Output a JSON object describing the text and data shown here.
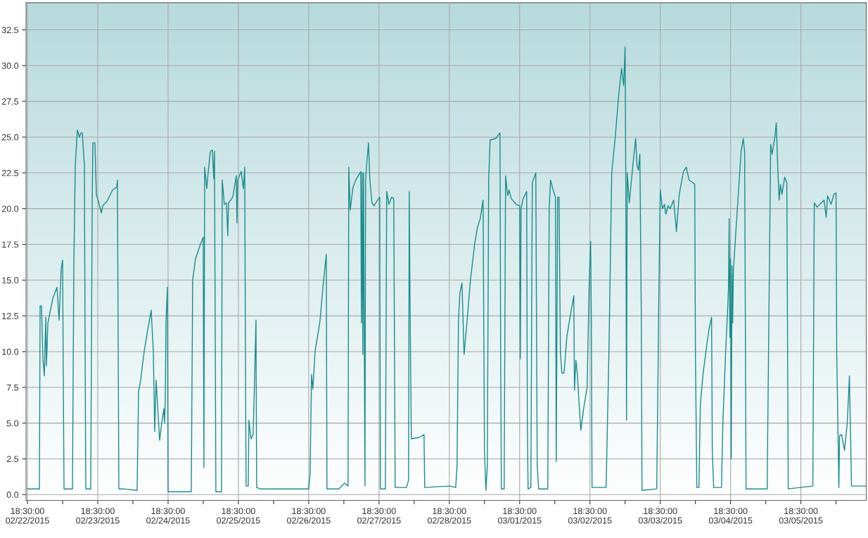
{
  "chart_data": {
    "type": "line",
    "grid": true,
    "marker": "none",
    "line_style": "solid",
    "xlim": [
      "2015-02-22T18:01",
      "2015-03-06T16:49"
    ],
    "ylim": [
      -0.4,
      34.4
    ],
    "yticks": [
      {
        "value": 0,
        "label": "0.0"
      },
      {
        "value": 2.5,
        "label": "2.5"
      },
      {
        "value": 5,
        "label": "5.0"
      },
      {
        "value": 7.5,
        "label": "7.5"
      },
      {
        "value": 10,
        "label": "10.0"
      },
      {
        "value": 12.5,
        "label": "12.5"
      },
      {
        "value": 15,
        "label": "15.0"
      },
      {
        "value": 17.5,
        "label": "17.5"
      },
      {
        "value": 20,
        "label": "20.0"
      },
      {
        "value": 22.5,
        "label": "22.5"
      },
      {
        "value": 25,
        "label": "25.0"
      },
      {
        "value": 27.5,
        "label": "27.5"
      },
      {
        "value": 30,
        "label": "30.0"
      },
      {
        "value": 32.5,
        "label": "32.5"
      }
    ],
    "xticks": [
      {
        "value": "2015-02-22T18:30",
        "label": "18:30:00\n02/22/2015"
      },
      {
        "value": "2015-02-23T06:30",
        "label": null
      },
      {
        "value": "2015-02-23T18:30",
        "label": "18:30:00\n02/23/2015"
      },
      {
        "value": "2015-02-24T06:30",
        "label": null
      },
      {
        "value": "2015-02-24T18:30",
        "label": "18:30:00\n02/24/2015"
      },
      {
        "value": "2015-02-25T06:30",
        "label": null
      },
      {
        "value": "2015-02-25T18:30",
        "label": "18:30:00\n02/25/2015"
      },
      {
        "value": "2015-02-26T06:30",
        "label": null
      },
      {
        "value": "2015-02-26T18:30",
        "label": "18:30:00\n02/26/2015"
      },
      {
        "value": "2015-02-27T06:30",
        "label": null
      },
      {
        "value": "2015-02-27T18:30",
        "label": "18:30:00\n02/27/2015"
      },
      {
        "value": "2015-02-28T06:30",
        "label": null
      },
      {
        "value": "2015-02-28T18:30",
        "label": "18:30:00\n02/28/2015"
      },
      {
        "value": "2015-03-01T06:30",
        "label": null
      },
      {
        "value": "2015-03-01T18:30",
        "label": "18:30:00\n03/01/2015"
      },
      {
        "value": "2015-03-02T06:30",
        "label": null
      },
      {
        "value": "2015-03-02T18:30",
        "label": "18:30:00\n03/02/2015"
      },
      {
        "value": "2015-03-03T06:30",
        "label": null
      },
      {
        "value": "2015-03-03T18:30",
        "label": "18:30:00\n03/03/2015"
      },
      {
        "value": "2015-03-04T06:30",
        "label": null
      },
      {
        "value": "2015-03-04T18:30",
        "label": "18:30:00\n03/04/2015"
      },
      {
        "value": "2015-03-05T06:30",
        "label": null
      },
      {
        "value": "2015-03-05T18:30",
        "label": "18:30:00\n03/05/2015"
      },
      {
        "value": "2015-03-06T06:30",
        "label": null
      }
    ],
    "series": [
      {
        "color": "#1b8c8c",
        "x": [
          "2015-02-22T18:30",
          "2015-02-22T22:35",
          "2015-02-22T22:49",
          "2015-02-22T23:18",
          "2015-02-22T23:47",
          "2015-02-23T00:16",
          "2015-02-23T00:44",
          "2015-02-23T00:59",
          "2015-02-23T01:28",
          "2015-02-23T03:08",
          "2015-02-23T04:35",
          "2015-02-23T05:18",
          "2015-02-23T06:01",
          "2015-02-23T06:30",
          "2015-02-23T06:44",
          "2015-02-23T06:59",
          "2015-02-23T09:52",
          "2015-02-23T10:20",
          "2015-02-23T10:49",
          "2015-02-23T11:32",
          "2015-02-23T12:16",
          "2015-02-23T12:44",
          "2015-02-23T13:13",
          "2015-02-23T13:56",
          "2015-02-23T14:11",
          "2015-02-23T14:25",
          "2015-02-23T16:06",
          "2015-02-23T16:35",
          "2015-02-23T16:49",
          "2015-02-23T17:32",
          "2015-02-23T18:01",
          "2015-02-23T18:44",
          "2015-02-23T19:42",
          "2015-02-23T20:11",
          "2015-02-23T21:37",
          "2015-02-23T23:32",
          "2015-02-24T00:59",
          "2015-02-24T01:13",
          "2015-02-24T01:28",
          "2015-02-24T01:42",
          "2015-02-24T03:08",
          "2015-02-24T07:56",
          "2015-02-24T08:25",
          "2015-02-24T09:08",
          "2015-02-24T10:20",
          "2015-02-24T11:32",
          "2015-02-24T12:44",
          "2015-02-24T13:28",
          "2015-02-24T13:56",
          "2015-02-24T14:25",
          "2015-02-24T15:37",
          "2015-02-24T16:20",
          "2015-02-24T17:04",
          "2015-02-24T17:18",
          "2015-02-24T17:32",
          "2015-02-24T17:47",
          "2015-02-24T18:16",
          "2015-02-24T18:30",
          "2015-02-25T02:25",
          "2015-02-25T02:54",
          "2015-02-25T03:52",
          "2015-02-25T05:32",
          "2015-02-25T06:30",
          "2015-02-25T06:44",
          "2015-02-25T06:59",
          "2015-02-25T07:42",
          "2015-02-25T08:11",
          "2015-02-25T08:54",
          "2015-02-25T09:37",
          "2015-02-25T10:06",
          "2015-02-25T10:20",
          "2015-02-25T10:49",
          "2015-02-25T12:44",
          "2015-02-25T12:59",
          "2015-02-25T13:42",
          "2015-02-25T14:25",
          "2015-02-25T14:54",
          "2015-02-25T15:08",
          "2015-02-25T16:35",
          "2015-02-25T17:47",
          "2015-02-25T18:01",
          "2015-02-25T18:16",
          "2015-02-25T19:28",
          "2015-02-25T20:11",
          "2015-02-25T20:40",
          "2015-02-25T20:54",
          "2015-02-25T21:08",
          "2015-02-25T21:52",
          "2015-02-25T22:06",
          "2015-02-25T22:49",
          "2015-02-25T23:32",
          "2015-02-26T00:01",
          "2015-02-26T00:30",
          "2015-02-26T00:44",
          "2015-02-26T01:56",
          "2015-02-26T18:30",
          "2015-02-26T18:59",
          "2015-02-26T19:28",
          "2015-02-26T19:56",
          "2015-02-26T20:40",
          "2015-02-26T22:20",
          "2015-02-26T23:32",
          "2015-02-27T00:30",
          "2015-02-27T00:44",
          "2015-02-27T04:49",
          "2015-02-27T06:44",
          "2015-02-27T07:56",
          "2015-02-27T08:11",
          "2015-02-27T08:40",
          "2015-02-27T09:37",
          "2015-02-27T10:35",
          "2015-02-27T12:16",
          "2015-02-27T12:30",
          "2015-02-27T12:44",
          "2015-02-27T12:59",
          "2015-02-27T13:13",
          "2015-02-27T13:42",
          "2015-02-27T13:56",
          "2015-02-27T14:11",
          "2015-02-27T14:54",
          "2015-02-27T15:23",
          "2015-02-27T16:06",
          "2015-02-27T16:49",
          "2015-02-27T18:01",
          "2015-02-27T18:44",
          "2015-02-27T18:59",
          "2015-02-27T20:40",
          "2015-02-27T21:08",
          "2015-02-27T21:52",
          "2015-02-27T22:49",
          "2015-02-27T23:32",
          "2015-02-28T00:01",
          "2015-02-28T03:52",
          "2015-02-28T04:35",
          "2015-02-28T04:49",
          "2015-02-28T05:04",
          "2015-02-28T05:32",
          "2015-02-28T08:11",
          "2015-02-28T09:52",
          "2015-02-28T10:06",
          "2015-02-28T18:44",
          "2015-02-28T20:40",
          "2015-02-28T21:08",
          "2015-02-28T21:37",
          "2015-02-28T22:06",
          "2015-02-28T22:49",
          "2015-02-28T23:32",
          "2015-03-01T00:30",
          "2015-03-01T01:42",
          "2015-03-01T03:08",
          "2015-03-01T04:06",
          "2015-03-01T05:04",
          "2015-03-01T06:01",
          "2015-03-01T06:30",
          "2015-03-01T06:59",
          "2015-03-01T07:28",
          "2015-03-01T07:56",
          "2015-03-01T08:25",
          "2015-03-01T10:20",
          "2015-03-01T11:47",
          "2015-03-01T12:01",
          "2015-03-01T12:16",
          "2015-03-01T13:13",
          "2015-03-01T13:42",
          "2015-03-01T14:25",
          "2015-03-01T14:54",
          "2015-03-01T15:37",
          "2015-03-01T17:18",
          "2015-03-01T18:30",
          "2015-03-01T18:44",
          "2015-03-01T18:59",
          "2015-03-01T19:42",
          "2015-03-01T20:54",
          "2015-03-01T21:08",
          "2015-03-01T21:23",
          "2015-03-01T22:20",
          "2015-03-01T22:49",
          "2015-03-02T00:01",
          "2015-03-02T00:30",
          "2015-03-02T00:59",
          "2015-03-02T04:06",
          "2015-03-02T04:35",
          "2015-03-02T05:04",
          "2015-03-02T05:47",
          "2015-03-02T06:44",
          "2015-03-02T06:59",
          "2015-03-02T07:28",
          "2015-03-02T07:56",
          "2015-03-02T08:25",
          "2015-03-02T08:54",
          "2015-03-02T09:37",
          "2015-03-02T09:52",
          "2015-03-02T10:35",
          "2015-03-02T11:47",
          "2015-03-02T12:59",
          "2015-03-02T13:13",
          "2015-03-02T13:42",
          "2015-03-02T14:11",
          "2015-03-02T14:54",
          "2015-03-02T15:23",
          "2015-03-02T16:20",
          "2015-03-02T17:32",
          "2015-03-02T18:16",
          "2015-03-02T18:44",
          "2015-03-02T18:59",
          "2015-03-02T19:13",
          "2015-03-03T00:01",
          "2015-03-03T00:59",
          "2015-03-03T01:56",
          "2015-03-03T03:08",
          "2015-03-03T04:20",
          "2015-03-03T05:18",
          "2015-03-03T06:01",
          "2015-03-03T06:30",
          "2015-03-03T06:44",
          "2015-03-03T06:59",
          "2015-03-03T07:13",
          "2015-03-03T07:56",
          "2015-03-03T08:40",
          "2015-03-03T09:23",
          "2015-03-03T10:06",
          "2015-03-03T10:35",
          "2015-03-03T11:04",
          "2015-03-03T11:32",
          "2015-03-03T12:01",
          "2015-03-03T12:16",
          "2015-03-03T17:18",
          "2015-03-03T18:01",
          "2015-03-03T18:30",
          "2015-03-03T19:13",
          "2015-03-03T19:56",
          "2015-03-03T20:25",
          "2015-03-03T21:08",
          "2015-03-03T21:52",
          "2015-03-03T23:04",
          "2015-03-04T00:01",
          "2015-03-04T00:59",
          "2015-03-04T02:25",
          "2015-03-04T03:23",
          "2015-03-04T04:20",
          "2015-03-04T05:04",
          "2015-03-04T06:16",
          "2015-03-04T06:30",
          "2015-03-04T06:59",
          "2015-03-04T07:42",
          "2015-03-04T08:11",
          "2015-03-04T09:08",
          "2015-03-04T10:06",
          "2015-03-04T11:04",
          "2015-03-04T12:01",
          "2015-03-04T12:16",
          "2015-03-04T12:44",
          "2015-03-04T15:23",
          "2015-03-04T15:52",
          "2015-03-04T16:49",
          "2015-03-04T17:32",
          "2015-03-04T17:47",
          "2015-03-04T18:01",
          "2015-03-04T18:16",
          "2015-03-04T18:30",
          "2015-03-04T18:44",
          "2015-03-04T18:59",
          "2015-03-04T19:13",
          "2015-03-04T19:28",
          "2015-03-04T20:11",
          "2015-03-04T21:08",
          "2015-03-04T22:06",
          "2015-03-04T22:49",
          "2015-03-04T23:18",
          "2015-03-04T23:47",
          "2015-03-05T06:59",
          "2015-03-05T07:28",
          "2015-03-05T08:11",
          "2015-03-05T08:40",
          "2015-03-05T09:37",
          "2015-03-05T10:06",
          "2015-03-05T10:35",
          "2015-03-05T11:04",
          "2015-03-05T11:32",
          "2015-03-05T12:01",
          "2015-03-05T12:59",
          "2015-03-05T13:42",
          "2015-03-05T14:11",
          "2015-03-05T22:35",
          "2015-03-05T23:04",
          "2015-03-06T00:01",
          "2015-03-06T00:59",
          "2015-03-06T02:25",
          "2015-03-06T03:08",
          "2015-03-06T03:37",
          "2015-03-06T04:49",
          "2015-03-06T05:47",
          "2015-03-06T06:30",
          "2015-03-06T06:44",
          "2015-03-06T07:28",
          "2015-03-06T07:42",
          "2015-03-06T08:25",
          "2015-03-06T09:23",
          "2015-03-06T10:20",
          "2015-03-06T11:04",
          "2015-03-06T11:47",
          "2015-03-06T16:49"
        ],
        "values": [
          0.4,
          0.4,
          13.2,
          13.2,
          9.5,
          8.3,
          12.4,
          9.0,
          12.0,
          13.7,
          14.5,
          12.2,
          15.8,
          16.4,
          8.0,
          0.4,
          0.4,
          16.0,
          23.0,
          25.5,
          25.0,
          25.3,
          25.3,
          23.0,
          10.0,
          0.4,
          0.4,
          20.0,
          24.6,
          24.6,
          21.0,
          20.5,
          19.7,
          20.2,
          20.5,
          21.3,
          21.5,
          22.0,
          10.5,
          0.4,
          0.4,
          0.3,
          7.2,
          8.0,
          10.0,
          11.5,
          12.9,
          10.0,
          4.4,
          8.0,
          3.8,
          5.0,
          6.0,
          5.0,
          6.5,
          12.0,
          14.5,
          0.2,
          0.2,
          15.0,
          16.5,
          17.5,
          18.0,
          1.9,
          22.9,
          21.4,
          22.5,
          24.0,
          24.1,
          22.1,
          24.0,
          0.2,
          0.2,
          22.0,
          20.3,
          20.4,
          18.1,
          20.4,
          20.8,
          22.3,
          19.0,
          22.0,
          22.6,
          21.4,
          22.9,
          10.0,
          0.6,
          0.6,
          5.2,
          3.9,
          4.2,
          8.0,
          12.2,
          0.5,
          0.4,
          0.4,
          1.5,
          8.4,
          7.4,
          10.0,
          12.1,
          14.9,
          16.8,
          0.4,
          0.4,
          0.8,
          0.6,
          22.9,
          19.9,
          21.5,
          22.0,
          22.6,
          12.0,
          22.5,
          9.8,
          22.5,
          0.6,
          22.0,
          22.8,
          24.6,
          22.0,
          20.4,
          20.2,
          20.6,
          20.8,
          0.4,
          0.4,
          21.2,
          20.3,
          20.8,
          20.7,
          0.5,
          0.5,
          1.0,
          21.2,
          13.9,
          3.9,
          4.0,
          4.2,
          0.5,
          0.6,
          0.5,
          2.0,
          12.1,
          14.1,
          14.8,
          9.8,
          12.0,
          15.0,
          17.5,
          18.7,
          19.3,
          20.6,
          3.0,
          0.3,
          2.0,
          22.0,
          24.8,
          24.9,
          25.3,
          10.0,
          0.4,
          0.4,
          22.3,
          20.9,
          21.3,
          20.7,
          20.3,
          20.2,
          9.5,
          20.0,
          20.7,
          21.2,
          5.0,
          0.4,
          0.5,
          21.8,
          22.5,
          2.0,
          0.4,
          0.4,
          20.0,
          22.0,
          21.4,
          20.8,
          2.3,
          20.8,
          20.8,
          10.0,
          8.5,
          8.5,
          9.0,
          11.0,
          12.5,
          13.9,
          7.3,
          9.4,
          8.5,
          6.0,
          4.5,
          6.0,
          7.5,
          15.0,
          17.7,
          12.0,
          0.5,
          0.5,
          10.0,
          22.5,
          25.0,
          28.0,
          29.8,
          28.6,
          31.3,
          22.0,
          5.2,
          22.5,
          20.4,
          22.0,
          23.5,
          24.9,
          23.0,
          22.7,
          23.8,
          13.0,
          0.3,
          0.4,
          14.0,
          21.3,
          20.0,
          20.3,
          19.6,
          20.2,
          20.0,
          20.6,
          18.4,
          21.0,
          22.6,
          22.9,
          22.0,
          21.9,
          21.7,
          10.0,
          0.5,
          0.5,
          6.3,
          8.5,
          10.0,
          11.5,
          12.4,
          3.0,
          0.5,
          0.5,
          5.0,
          10.0,
          13.1,
          14.4,
          19.3,
          11.0,
          16.5,
          2.5,
          16.0,
          12.0,
          15.7,
          18.0,
          21.0,
          24.0,
          24.9,
          24.0,
          0.4,
          0.4,
          10.0,
          24.5,
          23.8,
          25.0,
          26.0,
          23.0,
          20.6,
          21.7,
          21.0,
          22.2,
          21.8,
          0.4,
          0.6,
          20.4,
          20.1,
          20.3,
          20.6,
          19.4,
          20.9,
          20.3,
          21.0,
          21.1,
          10.0,
          0.5,
          4.1,
          4.2,
          3.1,
          5.0,
          8.3,
          0.6,
          0.6
        ]
      }
    ]
  }
}
